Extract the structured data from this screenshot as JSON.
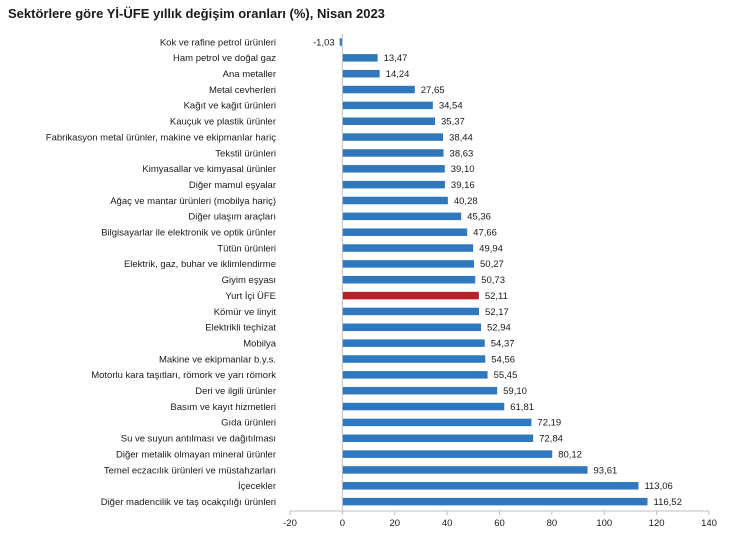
{
  "chart_data": {
    "type": "bar",
    "orientation": "horizontal",
    "title": "Sektörlere göre Yİ-ÜFE yıllık değişim oranları (%), Nisan 2023",
    "categories": [
      "Kok ve rafine petrol ürünleri",
      "Ham petrol ve doğal gaz",
      "Ana metaller",
      "Metal cevherleri",
      "Kağıt ve kağıt ürünleri",
      "Kauçuk ve plastik ürünler",
      "Fabrikasyon metal ürünler, makine ve ekipmanlar hariç",
      "Tekstil ürünleri",
      "Kimyasallar ve kimyasal ürünler",
      "Diğer mamul eşyalar",
      "Ağaç ve mantar ürünleri (mobilya hariç)",
      "Diğer ulaşım araçları",
      "Bilgisayarlar ile elektronik ve optik ürünler",
      "Tütün ürünleri",
      "Elektrik, gaz, buhar ve iklimlendirme",
      "Giyim eşyası",
      "Yurt İçi ÜFE",
      "Kömür ve linyit",
      "Elektrikli teçhizat",
      "Mobilya",
      "Makine ve ekipmanlar b.y.s.",
      "Motorlu kara taşıtları, römork ve yarı römork",
      "Deri ve ilgili ürünler",
      "Basım ve kayıt hizmetleri",
      "Gıda ürünleri",
      "Su ve suyun antılması ve dağıtılması",
      "Diğer metalik olmayan mineral ürünler",
      "Temel eczacılık ürünleri ve müstahzarları",
      "İçecekler",
      "Diğer madencilik ve taş ocakçılığı ürünleri"
    ],
    "values": [
      -1.03,
      13.47,
      14.24,
      27.65,
      34.54,
      35.37,
      38.44,
      38.63,
      39.1,
      39.16,
      40.28,
      45.36,
      47.66,
      49.94,
      50.27,
      50.73,
      52.11,
      52.17,
      52.94,
      54.37,
      54.56,
      55.45,
      59.1,
      61.81,
      72.19,
      72.84,
      80.12,
      93.61,
      113.06,
      116.52
    ],
    "value_labels": [
      "-1,03",
      "13,47",
      "14,24",
      "27,65",
      "34,54",
      "35,37",
      "38,44",
      "38,63",
      "39,10",
      "39,16",
      "40,28",
      "45,36",
      "47,66",
      "49,94",
      "50,27",
      "50,73",
      "52,11",
      "52,17",
      "52,94",
      "54,37",
      "54,56",
      "55,45",
      "59,10",
      "61,81",
      "72,19",
      "72,84",
      "80,12",
      "93,61",
      "113,06",
      "116,52"
    ],
    "highlight_category": "Yurt İçi ÜFE",
    "xlim": [
      -20,
      140
    ],
    "xticks": [
      -20,
      0,
      20,
      40,
      60,
      80,
      100,
      120,
      140
    ],
    "xtick_labels": [
      "-20",
      "0",
      "20",
      "40",
      "60",
      "80",
      "100",
      "120",
      "140"
    ],
    "grid": false,
    "legend": "none",
    "colors": {
      "bar": "#2f78bd",
      "highlight": "#b5202a",
      "axis": "#bfbfbf"
    }
  }
}
